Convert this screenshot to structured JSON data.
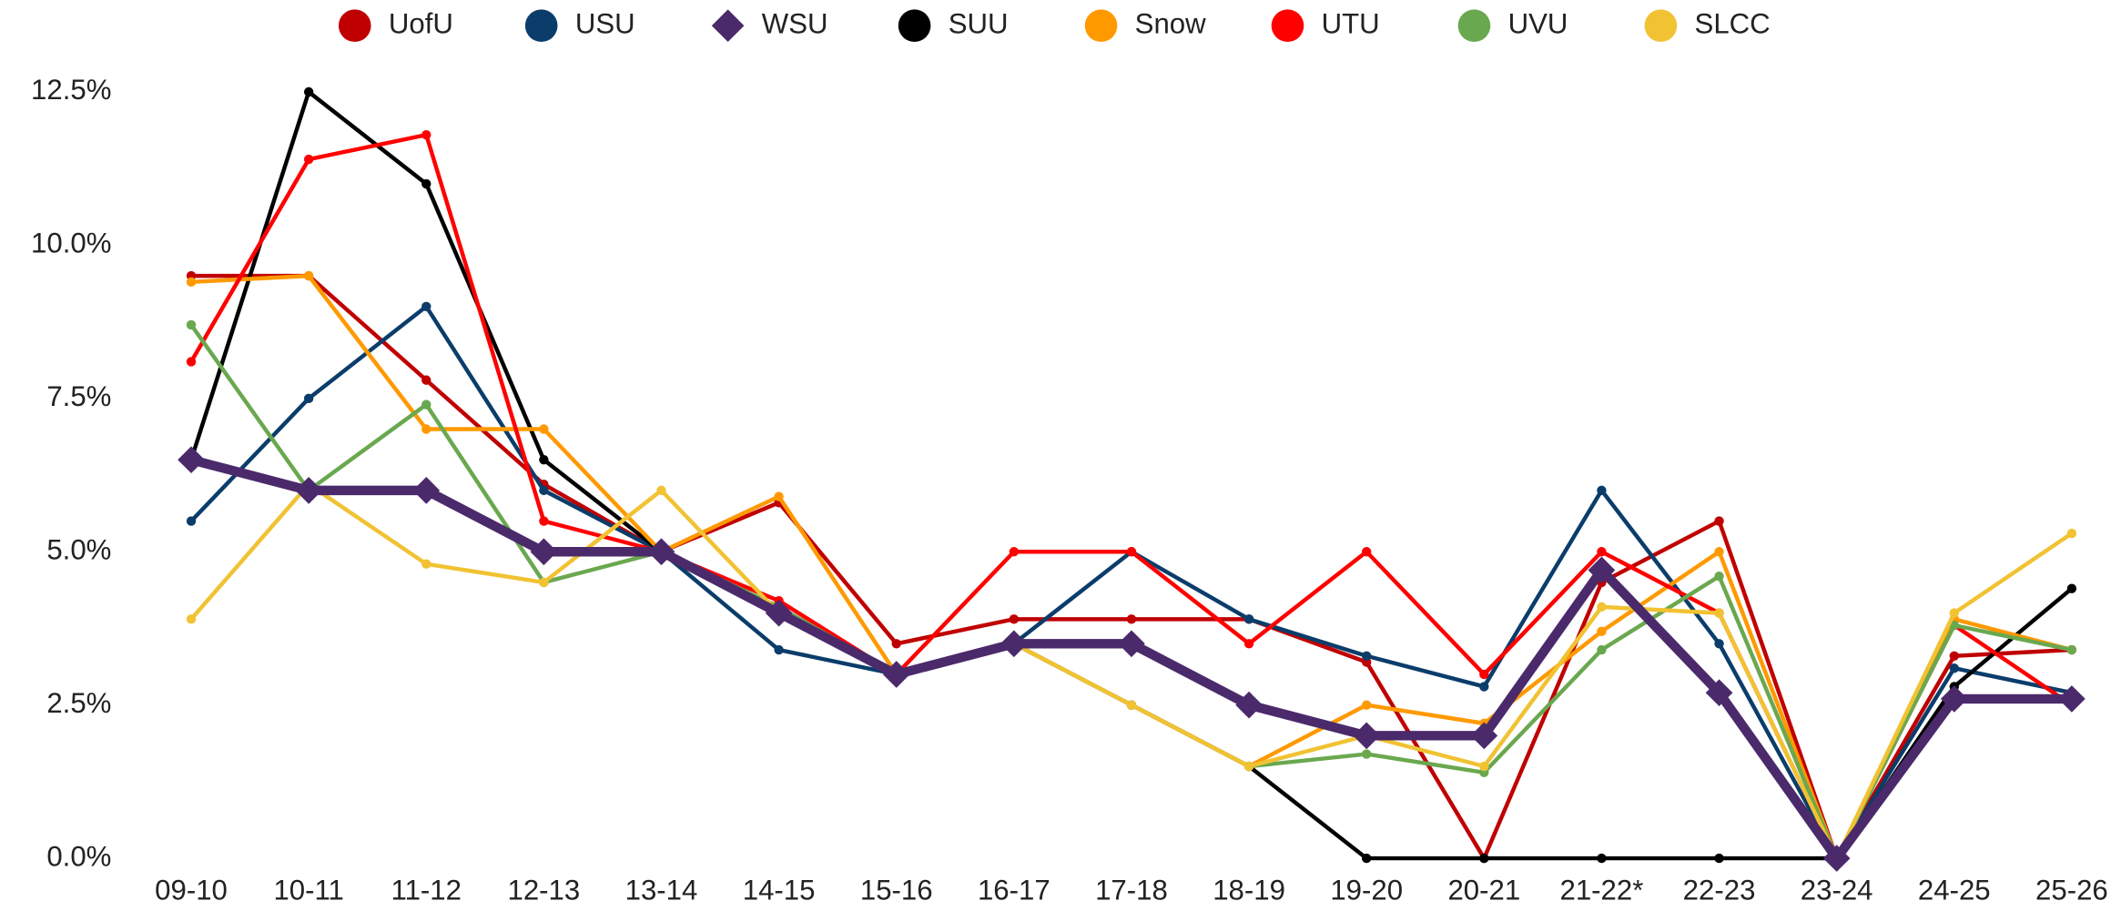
{
  "chart_data": {
    "type": "line",
    "categories": [
      "09-10",
      "10-11",
      "11-12",
      "12-13",
      "13-14",
      "14-15",
      "15-16",
      "16-17",
      "17-18",
      "18-19",
      "19-20",
      "20-21",
      "21-22*",
      "22-23",
      "23-24",
      "24-25",
      "25-26"
    ],
    "ylim": [
      0,
      12.5
    ],
    "yticks": [
      {
        "value": 0,
        "label": "0.0%"
      },
      {
        "value": 2.5,
        "label": "2.5%"
      },
      {
        "value": 5,
        "label": "5.0%"
      },
      {
        "value": 7.5,
        "label": "7.5%"
      },
      {
        "value": 10,
        "label": "10.0%"
      },
      {
        "value": 12.5,
        "label": "12.5%"
      }
    ],
    "grid": false,
    "legend": "top",
    "series": [
      {
        "name": "UofU",
        "color": "#c00000",
        "marker": "circle",
        "values": [
          9.5,
          9.5,
          7.8,
          6.1,
          5.0,
          5.8,
          3.5,
          3.9,
          3.9,
          3.9,
          3.2,
          0,
          4.5,
          5.5,
          0,
          3.3,
          3.4
        ]
      },
      {
        "name": "USU",
        "color": "#0b3d6b",
        "marker": "circle",
        "values": [
          5.5,
          7.5,
          9.0,
          6.0,
          5.0,
          3.4,
          3.0,
          3.5,
          5.0,
          3.9,
          3.3,
          2.8,
          6.0,
          3.5,
          0,
          3.1,
          2.7
        ]
      },
      {
        "name": "WSU",
        "color": "#4b2a6b",
        "marker": "diamond",
        "values": [
          6.5,
          6.0,
          6.0,
          5.0,
          5.0,
          4.0,
          3.0,
          3.5,
          3.5,
          2.5,
          2.0,
          2.0,
          4.7,
          2.7,
          0,
          2.6,
          2.6
        ]
      },
      {
        "name": "SUU",
        "color": "#000000",
        "marker": "circle",
        "values": [
          6.5,
          12.5,
          11.0,
          6.5,
          5.0,
          4.0,
          3.0,
          3.5,
          2.5,
          1.5,
          0,
          0,
          0,
          0,
          0,
          2.8,
          4.4
        ]
      },
      {
        "name": "Snow",
        "color": "#ff9900",
        "marker": "circle",
        "values": [
          9.4,
          9.5,
          7.0,
          7.0,
          5.0,
          5.9,
          3.0,
          3.5,
          2.5,
          1.5,
          2.5,
          2.2,
          3.7,
          5.0,
          0,
          3.9,
          3.4
        ]
      },
      {
        "name": "UTU",
        "color": "#ff0000",
        "marker": "circle",
        "values": [
          8.1,
          11.4,
          11.8,
          5.5,
          5.0,
          4.2,
          3.0,
          5.0,
          5.0,
          3.5,
          5.0,
          3.0,
          5.0,
          4.0,
          0,
          3.8,
          2.5
        ]
      },
      {
        "name": "UVU",
        "color": "#6aa84f",
        "marker": "circle",
        "values": [
          8.7,
          6.0,
          7.4,
          4.5,
          5.0,
          4.1,
          3.0,
          3.5,
          2.5,
          1.5,
          1.7,
          1.4,
          3.4,
          4.6,
          0,
          3.8,
          3.4
        ]
      },
      {
        "name": "SLCC",
        "color": "#f1c232",
        "marker": "circle",
        "values": [
          3.9,
          6.1,
          4.8,
          4.5,
          6.0,
          4.0,
          3.0,
          3.5,
          2.5,
          1.5,
          2.0,
          1.5,
          4.1,
          4.0,
          0,
          4.0,
          5.3
        ]
      }
    ]
  }
}
